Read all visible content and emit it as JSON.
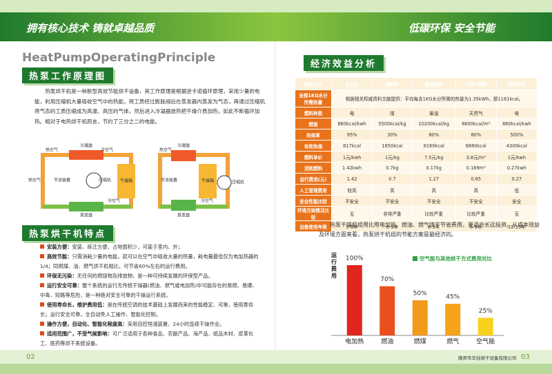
{
  "header": {
    "left_slogan": "拥有核心技术 铸就卓越品质",
    "right_slogan": "低碳环保 安全节能"
  },
  "left_page": {
    "english_title": "HeatPumpOperatingPrinciple",
    "principle": {
      "heading": "热泵工作原理图",
      "text": "热泵烘干机是一种新型高效节能烘干设备，其工作原理是根据逆卡诺循环原理，采用少量的电能，利用压缩机大量吸收空气中的热能，将工质经过膨胀阀后在蒸发器内蒸发为气态，再通过压缩机将气态的工质压缩成为高温、高压的气体，然后进入冷凝器放热把干燥介质加热，如此不断循环加热。相对于电热烘干机而言，节约了三分之二的电能。",
      "diagram_left": [
        "冷凝器",
        "热空气",
        "冷空气",
        "节流装置",
        "压缩机",
        "干燥箱",
        "蒸发器",
        "热空气",
        "冷空气"
      ],
      "diagram_right": [
        "冷凝器",
        "热空气",
        "节流装置",
        "干燥箱",
        "压缩机",
        "蒸发器",
        "冷空气"
      ]
    },
    "features": {
      "heading": "热泵烘干机特点",
      "items": [
        {
          "title": "安装方便：",
          "text": "安装、拆迁方便，占地面积少，可装于室内、外；"
        },
        {
          "title": "高效节能：",
          "text": "只需消耗少量的电能，就可以在空气中吸收大量的热量，耗电量最低仅为电加热器的1/4；同燃煤、油、燃气烘干机相比，可节省60%左右的运行费用。"
        },
        {
          "title": "环保无污染：",
          "text": "无任何的燃烧物及排放物，是一种可持续发展的环保型产品。"
        },
        {
          "title": "运行安全可靠：",
          "text": "整个系统的运行无传统干燥器(燃油、燃气或电加热)中可能存在的易燃、易爆、中毒、短路等危险，是一种绝对安全可靠的干燥运行系统。"
        },
        {
          "title": "使用寿命长，维护费用低：",
          "text": "是在传统空调的技术基础上发展而来的性能稳定、可靠，使用寿命长；运行安全可靠，全自动免人工操作，智能化控制。"
        },
        {
          "title": "操作方便，自动化、智能化程度高：",
          "text": "采用自控恒温装置，24小时连续干燥作业。"
        },
        {
          "title": "适用范围广，不受气候影响：",
          "text": "可广泛适用于各种食品、农副产品、海产品、纸品木材、皮革化工、医药等烘干系统设备。"
        }
      ]
    },
    "page_number": "02"
  },
  "right_page": {
    "heading": "经济效益分析",
    "table": {
      "columns": [
        "能热方式",
        "电加热",
        "煤锅炉",
        "燃油锅炉",
        "天然气锅炉",
        "热泵烘干"
      ],
      "rows": [
        [
          "全部1KG水分所需热量",
          "根据相关权威资料文献提供：平均每去1KG水分所需的热量为1.35kWh，即1161kcal。"
        ],
        [
          "燃料种类",
          "电",
          "煤",
          "柴油",
          "天然气",
          "电"
        ],
        [
          "燃值",
          "860kcal/kwh",
          "5500kcal/kg",
          "10200kcal/kg",
          "8600kcal/m³",
          "860kcal/kwh"
        ],
        [
          "热效率",
          "95%",
          "30%",
          "80%",
          "80%",
          "500%"
        ],
        [
          "有效热值",
          "817kcal",
          "1650kcal",
          "8160kcal",
          "6880kcal",
          "4300kcal"
        ],
        [
          "燃料单价",
          "1元/kwh",
          "1元/kg",
          "7.5元/kg",
          "3.8元/m³",
          "1元/kwh"
        ],
        [
          "消耗燃料",
          "1.42kwh",
          "0.7kg",
          "0.17kg",
          "0.169m³",
          "0.27kwh"
        ],
        [
          "运行费用(元)",
          "1.42",
          "0.7",
          "1.27",
          "0.65",
          "0.27"
        ],
        [
          "人工管理费用",
          "较高",
          "高",
          "高",
          "高",
          "低"
        ],
        [
          "安全性能比较",
          "不安全",
          "不安全",
          "不安全",
          "不安全",
          "安全"
        ],
        [
          "环境污染情况比较",
          "无",
          "非常严重",
          "比较严重",
          "比较严重",
          "无"
        ],
        [
          "设备使用年限",
          "5-8年",
          "6-9年",
          "6-9年",
          "6-9年",
          "10-15年"
        ]
      ]
    },
    "summary": "热泵干燥机组用比用电加热、燃油、燃气烘干节省费用，更适合长远投资。从成本效益及环境方面来看，热泵烘干机组的节能方案是最经济的。",
    "company": "隆师市华创烘干设备有限公司",
    "page_number": "03"
  },
  "chart_data": {
    "type": "bar",
    "title": "空气能与其他烘干方式费用对比",
    "ylabel": "运行费用",
    "categories": [
      "电加热",
      "燃油",
      "燃煤",
      "燃气",
      "空气能"
    ],
    "values": [
      100,
      70,
      50,
      45,
      25
    ],
    "value_labels": [
      "100%",
      "70%",
      "50%",
      "45%",
      "25%"
    ],
    "colors": [
      "#e0261c",
      "#e9501e",
      "#f39a18",
      "#f5a31a",
      "#f7d21c"
    ]
  }
}
